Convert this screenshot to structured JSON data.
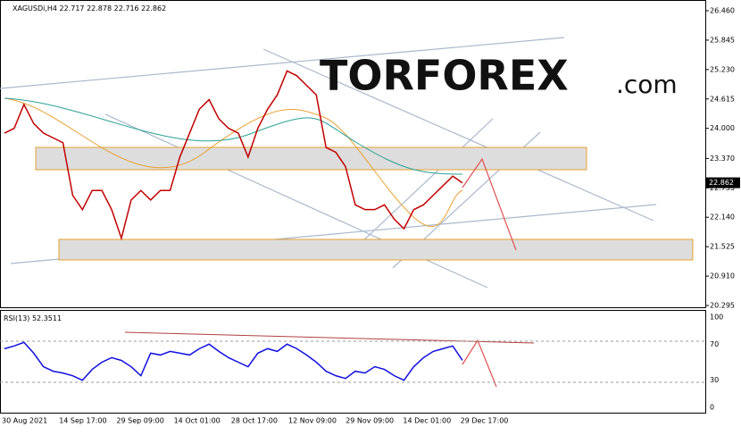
{
  "header": {
    "symbol": "XAGUSDi,H4",
    "open": 22.717,
    "high": 22.878,
    "low": 22.716,
    "close": 22.862
  },
  "logo": {
    "main": "TORFOREX",
    "suffix": ".com"
  },
  "price_axis": {
    "ylim": [
      20.295,
      26.46
    ],
    "ticks": [
      {
        "value": 26.46,
        "label": "26.460"
      },
      {
        "value": 25.845,
        "label": "25.845"
      },
      {
        "value": 25.23,
        "label": "25.230"
      },
      {
        "value": 24.615,
        "label": "24.615"
      },
      {
        "value": 24.0,
        "label": "24.000"
      },
      {
        "value": 23.37,
        "label": "23.370"
      },
      {
        "value": 22.755,
        "label": "22.755"
      },
      {
        "value": 22.14,
        "label": "22.140"
      },
      {
        "value": 21.525,
        "label": "21.525"
      },
      {
        "value": 20.91,
        "label": "20.910"
      },
      {
        "value": 20.295,
        "label": "20.295"
      }
    ],
    "current": 22.862
  },
  "price_series": [
    23.9,
    24.0,
    24.5,
    24.1,
    23.9,
    23.8,
    23.7,
    22.6,
    22.3,
    22.7,
    22.7,
    22.3,
    21.7,
    22.5,
    22.7,
    22.5,
    22.7,
    22.7,
    23.4,
    23.9,
    24.4,
    24.6,
    24.2,
    24.0,
    23.9,
    23.4,
    24.0,
    24.4,
    24.7,
    25.2,
    25.1,
    24.9,
    24.7,
    23.6,
    23.5,
    23.2,
    22.4,
    22.3,
    22.3,
    22.4,
    22.1,
    21.9,
    22.3,
    22.4,
    22.6,
    22.8,
    23.0,
    22.86
  ],
  "rsi": {
    "label": "RSI(13)",
    "value": 52.3511,
    "ylim": [
      0,
      100
    ],
    "ticks": [
      100,
      70,
      30,
      0
    ],
    "values": [
      65,
      68,
      72,
      60,
      45,
      40,
      38,
      35,
      30,
      42,
      50,
      55,
      52,
      45,
      35,
      60,
      58,
      62,
      60,
      58,
      65,
      70,
      62,
      55,
      50,
      45,
      60,
      65,
      62,
      70,
      65,
      58,
      50,
      40,
      35,
      32,
      40,
      38,
      45,
      42,
      35,
      30,
      45,
      55,
      62,
      65,
      68,
      52
    ]
  },
  "time_axis": [
    "30 Aug 2021",
    "14 Sep 17:00",
    "29 Sep 09:00",
    "14 Oct 01:00",
    "28 Oct 17:00",
    "12 Nov 09:00",
    "29 Nov 09:00",
    "14 Dec 01:00",
    "29 Dec 17:00"
  ]
}
